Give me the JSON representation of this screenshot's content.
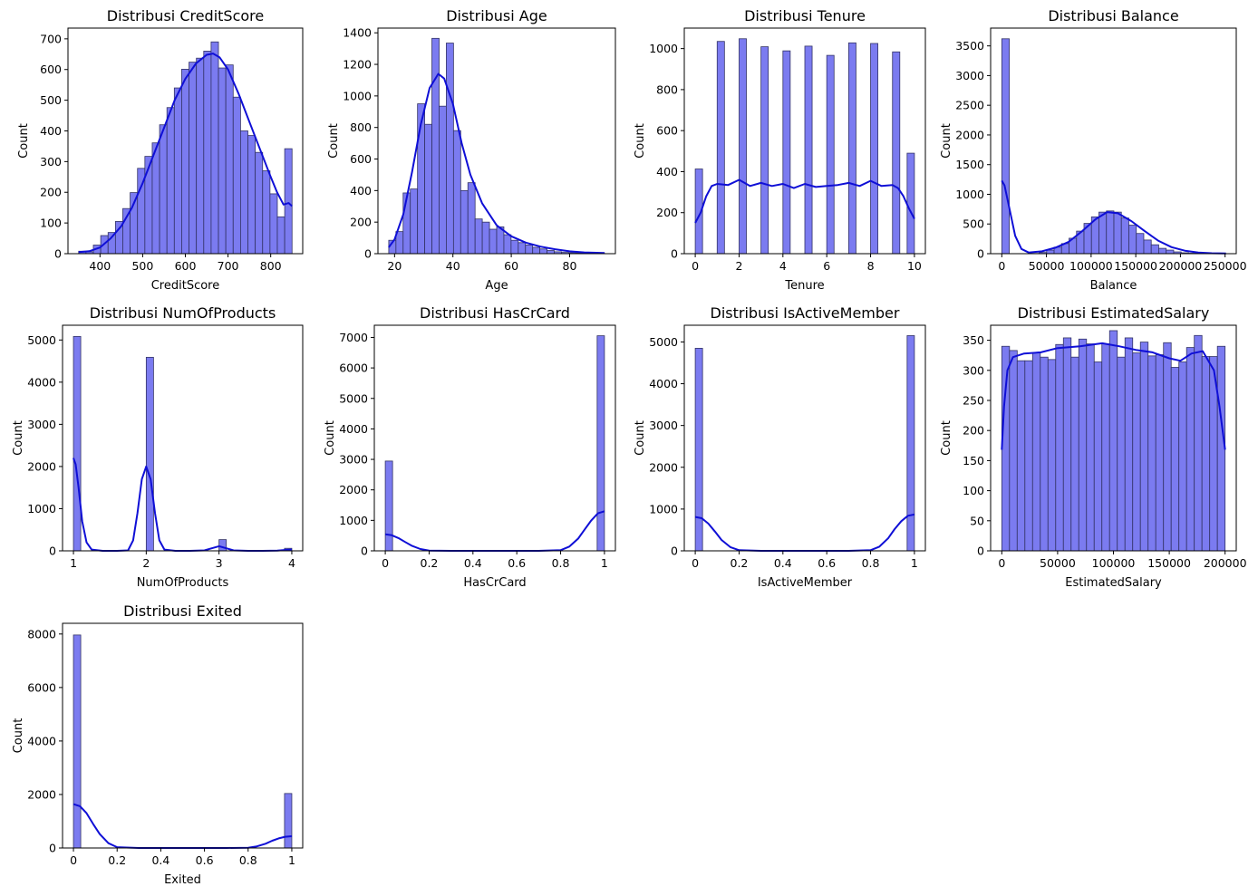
{
  "style": {
    "bar_color": "#7b7bf0",
    "bar_edge": "#333366",
    "kde_color": "#0f0fd6"
  },
  "chart_data": [
    {
      "type": "bar",
      "title": "Distribusi CreditScore",
      "xlabel": "CreditScore",
      "ylabel": "Count",
      "xlim": [
        325,
        875
      ],
      "ylim": [
        0,
        735
      ],
      "xticks": [
        400,
        500,
        600,
        700,
        800
      ],
      "yticks": [
        0,
        100,
        200,
        300,
        400,
        500,
        600,
        700
      ],
      "bin_range": [
        350,
        850
      ],
      "values": [
        8,
        6,
        28,
        59,
        69,
        105,
        147,
        199,
        278,
        317,
        361,
        420,
        476,
        540,
        601,
        624,
        637,
        660,
        690,
        605,
        615,
        510,
        400,
        385,
        330,
        270,
        195,
        120,
        342
      ],
      "kde": {
        "x": [
          350,
          375,
          400,
          425,
          450,
          475,
          500,
          525,
          550,
          575,
          600,
          625,
          650,
          665,
          680,
          700,
          725,
          750,
          775,
          800,
          815,
          830,
          842,
          850
        ],
        "y": [
          5,
          8,
          20,
          50,
          90,
          150,
          230,
          320,
          410,
          500,
          570,
          620,
          648,
          652,
          640,
          600,
          520,
          430,
          340,
          250,
          200,
          160,
          165,
          155
        ]
      }
    },
    {
      "type": "bar",
      "title": "Distribusi Age",
      "xlabel": "Age",
      "ylabel": "Count",
      "xlim": [
        14.3,
        95.7
      ],
      "ylim": [
        0,
        1430
      ],
      "xticks": [
        20,
        40,
        60,
        80
      ],
      "yticks": [
        0,
        200,
        400,
        600,
        800,
        1000,
        1200,
        1400
      ],
      "bin_range": [
        18,
        92
      ],
      "values": [
        85,
        140,
        385,
        410,
        950,
        820,
        1365,
        935,
        1335,
        780,
        400,
        450,
        220,
        200,
        155,
        170,
        120,
        85,
        70,
        55,
        40,
        30,
        20,
        12,
        8,
        6,
        5,
        3,
        2,
        2
      ],
      "kde": {
        "x": [
          18,
          20,
          23,
          26,
          29,
          32,
          35,
          37,
          40,
          43,
          46,
          50,
          55,
          60,
          65,
          70,
          75,
          80,
          85,
          92
        ],
        "y": [
          40,
          90,
          250,
          520,
          820,
          1050,
          1140,
          1110,
          950,
          700,
          500,
          320,
          180,
          110,
          70,
          45,
          28,
          15,
          8,
          4
        ]
      }
    },
    {
      "type": "bar",
      "title": "Distribusi Tenure",
      "xlabel": "Tenure",
      "ylabel": "Count",
      "xlim": [
        -0.5,
        10.5
      ],
      "ylim": [
        0,
        1100
      ],
      "xticks": [
        0,
        2,
        4,
        6,
        8,
        10
      ],
      "yticks": [
        0,
        200,
        400,
        600,
        800,
        1000
      ],
      "bin_range": [
        0,
        10
      ],
      "values": [
        413,
        0,
        0,
        1035,
        0,
        0,
        1048,
        0,
        0,
        1009,
        0,
        0,
        989,
        0,
        0,
        1012,
        0,
        0,
        967,
        0,
        0,
        1028,
        0,
        0,
        1025,
        0,
        0,
        984,
        0,
        490
      ],
      "kde": {
        "x": [
          0,
          0.25,
          0.5,
          0.75,
          1,
          1.5,
          2,
          2.5,
          3,
          3.5,
          4,
          4.5,
          5,
          5.5,
          6,
          6.5,
          7,
          7.5,
          8,
          8.5,
          9,
          9.25,
          9.5,
          9.75,
          10
        ],
        "y": [
          150,
          200,
          280,
          330,
          340,
          335,
          360,
          330,
          345,
          330,
          340,
          320,
          340,
          325,
          330,
          335,
          345,
          330,
          355,
          330,
          335,
          320,
          280,
          220,
          170
        ]
      }
    },
    {
      "type": "bar",
      "title": "Distribusi Balance",
      "xlabel": "Balance",
      "ylabel": "Count",
      "xlim": [
        -12500,
        262500
      ],
      "ylim": [
        0,
        3800
      ],
      "xticks": [
        0,
        50000,
        100000,
        150000,
        200000,
        250000
      ],
      "yticks": [
        0,
        500,
        1000,
        1500,
        2000,
        2500,
        3000,
        3500
      ],
      "bin_range": [
        0,
        251000
      ],
      "values": [
        3620,
        0,
        0,
        0,
        4,
        20,
        60,
        110,
        170,
        260,
        380,
        510,
        620,
        700,
        720,
        700,
        600,
        480,
        340,
        230,
        150,
        90,
        60,
        30,
        15,
        8,
        4,
        3,
        2,
        1
      ],
      "kde": {
        "x": [
          0,
          3000,
          8000,
          15000,
          22000,
          30000,
          45000,
          60000,
          75000,
          90000,
          105000,
          118000,
          130000,
          145000,
          160000,
          175000,
          190000,
          205000,
          220000,
          235000,
          251000
        ],
        "y": [
          1230,
          1150,
          800,
          300,
          80,
          20,
          40,
          100,
          200,
          380,
          580,
          700,
          680,
          550,
          380,
          220,
          110,
          50,
          20,
          8,
          3
        ]
      }
    },
    {
      "type": "bar",
      "title": "Distribusi NumOfProducts",
      "xlabel": "NumOfProducts",
      "ylabel": "Count",
      "xlim": [
        0.85,
        4.15
      ],
      "ylim": [
        0,
        5350
      ],
      "xticks": [
        1,
        2,
        3,
        4
      ],
      "yticks": [
        0,
        1000,
        2000,
        3000,
        4000,
        5000
      ],
      "bin_range": [
        1,
        4
      ],
      "values": [
        5084,
        0,
        0,
        0,
        0,
        0,
        0,
        0,
        0,
        0,
        4590,
        0,
        0,
        0,
        0,
        0,
        0,
        0,
        0,
        0,
        266,
        0,
        0,
        0,
        0,
        0,
        0,
        0,
        0,
        60
      ],
      "kde": {
        "x": [
          1,
          1.03,
          1.07,
          1.12,
          1.18,
          1.25,
          1.4,
          1.6,
          1.75,
          1.82,
          1.88,
          1.94,
          2,
          2.06,
          2.12,
          2.18,
          2.25,
          2.4,
          2.6,
          2.8,
          2.9,
          3,
          3.1,
          3.2,
          3.4,
          3.6,
          3.8,
          3.9,
          4
        ],
        "y": [
          2200,
          2050,
          1500,
          700,
          200,
          30,
          0,
          0,
          10,
          250,
          900,
          1700,
          2000,
          1700,
          900,
          250,
          30,
          0,
          0,
          10,
          60,
          110,
          60,
          10,
          0,
          0,
          5,
          20,
          30
        ]
      }
    },
    {
      "type": "bar",
      "title": "Distribusi HasCrCard",
      "xlabel": "HasCrCard",
      "ylabel": "Count",
      "xlim": [
        -0.05,
        1.05
      ],
      "ylim": [
        0,
        7400
      ],
      "xticks": [
        0.0,
        0.2,
        0.4,
        0.6,
        0.8,
        1.0
      ],
      "yticks": [
        0,
        1000,
        2000,
        3000,
        4000,
        5000,
        6000,
        7000
      ],
      "bin_range": [
        0,
        1
      ],
      "values": [
        2945,
        0,
        0,
        0,
        0,
        0,
        0,
        0,
        0,
        0,
        0,
        0,
        0,
        0,
        0,
        0,
        0,
        0,
        0,
        0,
        0,
        0,
        0,
        0,
        0,
        0,
        0,
        0,
        0,
        7055
      ],
      "kde": {
        "x": [
          0,
          0.03,
          0.06,
          0.09,
          0.12,
          0.16,
          0.2,
          0.3,
          0.5,
          0.7,
          0.8,
          0.84,
          0.88,
          0.91,
          0.94,
          0.97,
          1
        ],
        "y": [
          540,
          510,
          420,
          290,
          170,
          60,
          10,
          0,
          0,
          0,
          20,
          140,
          400,
          700,
          1000,
          1230,
          1300
        ]
      }
    },
    {
      "type": "bar",
      "title": "Distribusi IsActiveMember",
      "xlabel": "IsActiveMember",
      "ylabel": "Count",
      "xlim": [
        -0.05,
        1.05
      ],
      "ylim": [
        0,
        5400
      ],
      "xticks": [
        0.0,
        0.2,
        0.4,
        0.6,
        0.8,
        1.0
      ],
      "yticks": [
        0,
        1000,
        2000,
        3000,
        4000,
        5000
      ],
      "bin_range": [
        0,
        1
      ],
      "values": [
        4849,
        0,
        0,
        0,
        0,
        0,
        0,
        0,
        0,
        0,
        0,
        0,
        0,
        0,
        0,
        0,
        0,
        0,
        0,
        0,
        0,
        0,
        0,
        0,
        0,
        0,
        0,
        0,
        0,
        5151
      ],
      "kde": {
        "x": [
          0,
          0.03,
          0.06,
          0.09,
          0.12,
          0.16,
          0.2,
          0.3,
          0.5,
          0.7,
          0.8,
          0.84,
          0.88,
          0.91,
          0.94,
          0.97,
          1
        ],
        "y": [
          810,
          780,
          650,
          460,
          260,
          90,
          15,
          0,
          0,
          0,
          15,
          100,
          300,
          520,
          710,
          840,
          870
        ]
      }
    },
    {
      "type": "bar",
      "title": "Distribusi EstimatedSalary",
      "xlabel": "EstimatedSalary",
      "ylabel": "Count",
      "xlim": [
        -10000,
        210000
      ],
      "ylim": [
        0,
        375
      ],
      "xticks": [
        0,
        50000,
        100000,
        150000,
        200000
      ],
      "yticks": [
        0,
        50,
        100,
        150,
        200,
        250,
        300,
        350
      ],
      "bin_range": [
        0,
        200000
      ],
      "values": [
        340,
        333,
        316,
        316,
        329,
        322,
        318,
        343,
        354,
        322,
        352,
        344,
        314,
        344,
        366,
        322,
        354,
        329,
        347,
        324,
        326,
        346,
        305,
        314,
        338,
        358,
        323,
        323,
        340
      ],
      "kde": {
        "x": [
          0,
          2000,
          5000,
          10000,
          20000,
          35000,
          50000,
          70000,
          90000,
          105000,
          120000,
          135000,
          150000,
          160000,
          170000,
          180000,
          190000,
          195000,
          200000
        ],
        "y": [
          168,
          240,
          300,
          322,
          328,
          330,
          337,
          340,
          345,
          340,
          334,
          330,
          320,
          316,
          328,
          332,
          300,
          240,
          168
        ]
      }
    },
    {
      "type": "bar",
      "title": "Distribusi Exited",
      "xlabel": "Exited",
      "ylabel": "Count",
      "xlim": [
        -0.05,
        1.05
      ],
      "ylim": [
        0,
        8400
      ],
      "xticks": [
        0.0,
        0.2,
        0.4,
        0.6,
        0.8,
        1.0
      ],
      "yticks": [
        0,
        2000,
        4000,
        6000,
        8000
      ],
      "bin_range": [
        0,
        1
      ],
      "values": [
        7963,
        0,
        0,
        0,
        0,
        0,
        0,
        0,
        0,
        0,
        0,
        0,
        0,
        0,
        0,
        0,
        0,
        0,
        0,
        0,
        0,
        0,
        0,
        0,
        0,
        0,
        0,
        0,
        0,
        2037
      ],
      "kde": {
        "x": [
          0,
          0.03,
          0.06,
          0.09,
          0.12,
          0.16,
          0.2,
          0.3,
          0.5,
          0.7,
          0.8,
          0.84,
          0.88,
          0.91,
          0.94,
          0.97,
          1
        ],
        "y": [
          1640,
          1560,
          1300,
          900,
          520,
          180,
          30,
          0,
          0,
          0,
          10,
          60,
          160,
          270,
          360,
          420,
          440
        ]
      }
    }
  ]
}
